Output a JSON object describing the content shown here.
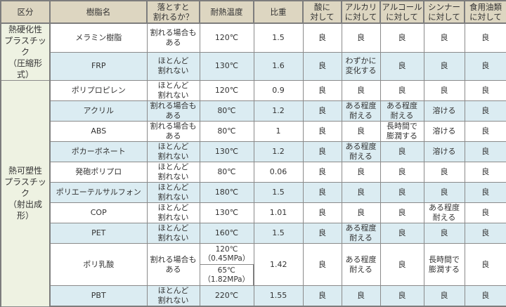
{
  "headers": [
    "区分",
    "樹脂名",
    "落とすと\n割れるか？",
    "耐熱温度",
    "比重",
    "酸に\n対して",
    "アルカリ\nに対して",
    "アルコール\nに対して",
    "シンナー\nに対して",
    "食用油類\nに対して"
  ],
  "categories": [
    {
      "label": "熱硬化性\nプラスチック\n（圧縮形式）",
      "row_count": 2
    },
    {
      "label": "熱可塑性\nプラスチック\n（射出成形）",
      "row_count": 10
    }
  ],
  "rows": [
    {
      "name": "メラミン樹脂",
      "drop": "割れる場合も\nある",
      "heat": [
        "120℃"
      ],
      "gravity": "1.5",
      "acid": "良",
      "alkali": "良",
      "alcohol": "良",
      "thinner": "良",
      "oil": "良"
    },
    {
      "name": "FRP",
      "drop": "ほとんど\n割れない",
      "heat": [
        "130℃"
      ],
      "gravity": "1.6",
      "acid": "良",
      "alkali": "わずかに\n変化する",
      "alcohol": "良",
      "thinner": "良",
      "oil": "良"
    },
    {
      "name": "ポリプロピレン",
      "drop": "ほとんど\n割れない",
      "heat": [
        "120℃"
      ],
      "gravity": "0.9",
      "acid": "良",
      "alkali": "良",
      "alcohol": "良",
      "thinner": "良",
      "oil": "良"
    },
    {
      "name": "アクリル",
      "drop": "割れる場合も\nある",
      "heat": [
        "80℃"
      ],
      "gravity": "1.2",
      "acid": "良",
      "alkali": "ある程度\n耐える",
      "alcohol": "ある程度\n耐える",
      "thinner": "溶ける",
      "oil": "良"
    },
    {
      "name": "ABS",
      "drop": "割れる場合も\nある",
      "heat": [
        "80℃"
      ],
      "gravity": "1",
      "acid": "良",
      "alkali": "良",
      "alcohol": "長時間で\n膨潤する",
      "thinner": "溶ける",
      "oil": "良"
    },
    {
      "name": "ポカーボネート",
      "drop": "ほとんど\n割れない",
      "heat": [
        "130℃"
      ],
      "gravity": "1.2",
      "acid": "良",
      "alkali": "ある程度\n耐える",
      "alcohol": "良",
      "thinner": "溶ける",
      "oil": "良"
    },
    {
      "name": "発砲ポリプロ",
      "drop": "ほとんど\n割れない",
      "heat": [
        "80℃"
      ],
      "gravity": "0.06",
      "acid": "良",
      "alkali": "良",
      "alcohol": "良",
      "thinner": "良",
      "oil": "良"
    },
    {
      "name": "ポリエーテルサルフォン",
      "drop": "ほとんど\n割れない",
      "heat": [
        "180℃"
      ],
      "gravity": "1.5",
      "acid": "良",
      "alkali": "良",
      "alcohol": "良",
      "thinner": "良",
      "oil": "良"
    },
    {
      "name": "COP",
      "drop": "ほとんど\n割れない",
      "heat": [
        "130℃"
      ],
      "gravity": "1.01",
      "acid": "良",
      "alkali": "良",
      "alcohol": "良",
      "thinner": "ある程度\n耐える",
      "oil": "良"
    },
    {
      "name": "PET",
      "drop": "ほとんど\n割れない",
      "heat": [
        "160℃"
      ],
      "gravity": "1.5",
      "acid": "良",
      "alkali": "ある程度\n耐える",
      "alcohol": "良",
      "thinner": "良",
      "oil": "良"
    },
    {
      "name": "ポリ乳酸",
      "drop": "割れる場合も\nある",
      "heat": [
        "120℃\n（0.45MPa）",
        "65℃\n（1.82MPa）"
      ],
      "gravity": "1.42",
      "acid": "良",
      "alkali": "ある程度\n耐える",
      "alcohol": "良",
      "thinner": "長時間で\n膨潤する",
      "oil": "良"
    },
    {
      "name": "PBT",
      "drop": "ほとんど\n割れない",
      "heat": [
        "220℃"
      ],
      "gravity": "1.55",
      "acid": "良",
      "alkali": "良",
      "alcohol": "良",
      "thinner": "良",
      "oil": "良"
    }
  ]
}
